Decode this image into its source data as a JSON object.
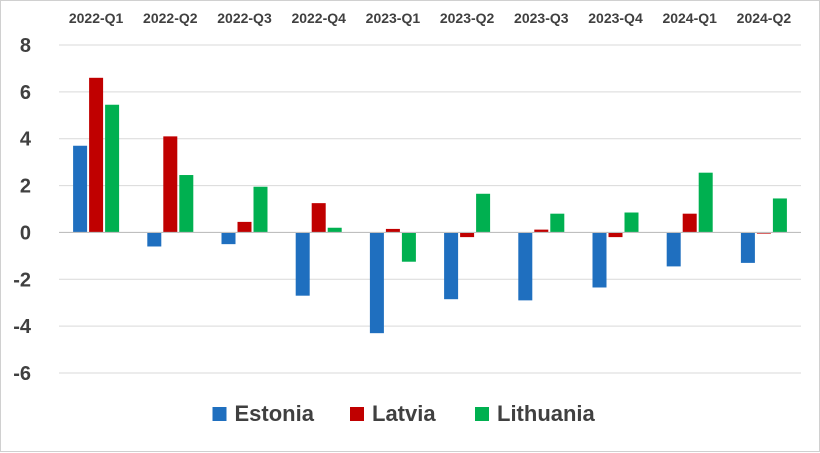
{
  "chart_data": {
    "type": "bar",
    "title": "",
    "xlabel": "",
    "ylabel": "",
    "categories": [
      "2022-Q1",
      "2022-Q2",
      "2022-Q3",
      "2022-Q4",
      "2023-Q1",
      "2023-Q2",
      "2023-Q3",
      "2023-Q4",
      "2024-Q1",
      "2024-Q2"
    ],
    "series": [
      {
        "name": "Estonia",
        "color": "#1f6fbf",
        "values": [
          3.7,
          -0.6,
          -0.5,
          -2.7,
          -4.3,
          -2.85,
          -2.9,
          -2.35,
          -1.45,
          -1.3
        ]
      },
      {
        "name": "Latvia",
        "color": "#c00000",
        "values": [
          6.6,
          4.1,
          0.45,
          1.25,
          0.15,
          -0.2,
          0.12,
          -0.2,
          0.8,
          -0.05
        ]
      },
      {
        "name": "Lithuania",
        "color": "#00b050",
        "values": [
          5.45,
          2.45,
          1.95,
          0.2,
          -1.25,
          1.65,
          0.8,
          0.85,
          2.55,
          1.45
        ]
      }
    ],
    "ylim": [
      -6,
      8
    ],
    "yticks": [
      8,
      6,
      4,
      2,
      0,
      -2,
      -4,
      -6
    ],
    "ytick_labels": [
      "8",
      "6",
      "4",
      "2",
      "0",
      "-2",
      "-4",
      "-6"
    ],
    "grid": true,
    "category_labels_position": "top",
    "legend": "bottom"
  }
}
